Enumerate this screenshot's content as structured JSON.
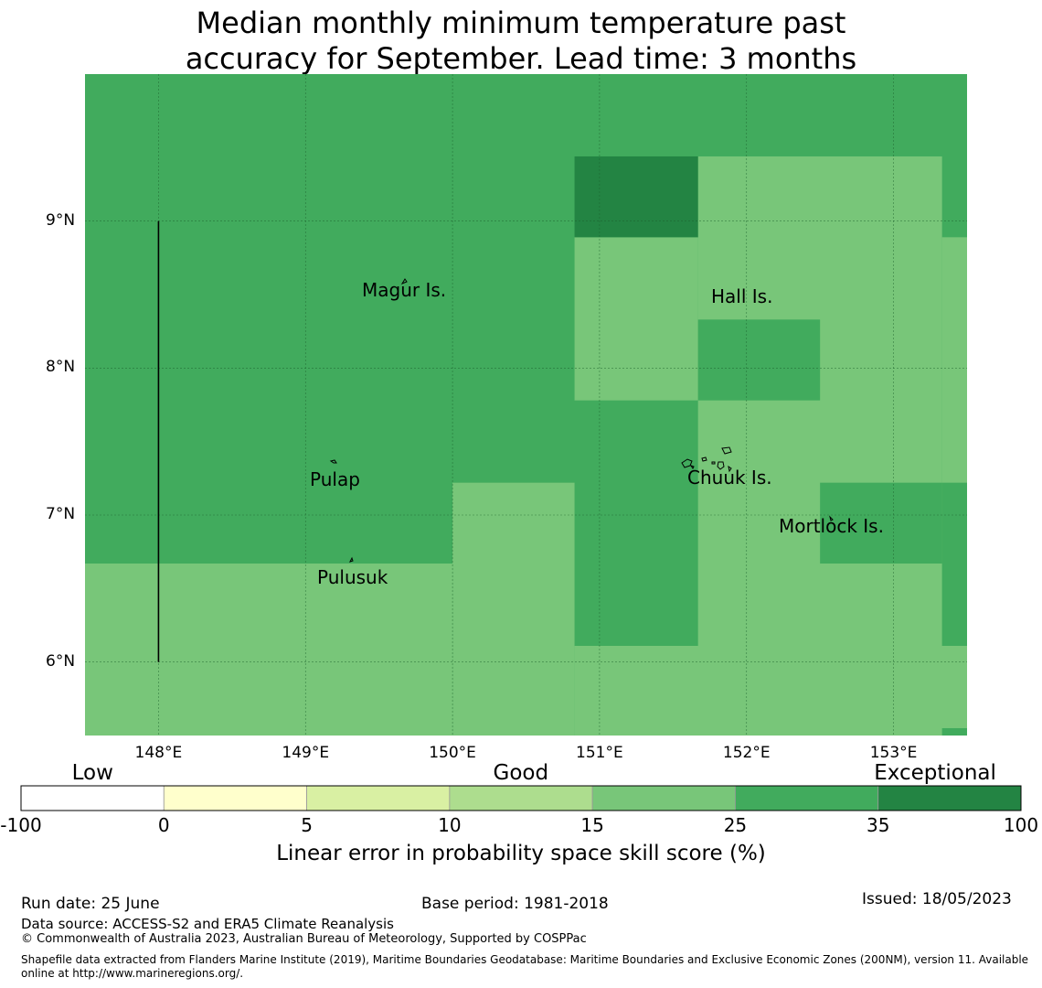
{
  "title": {
    "line1": "Median monthly minimum temperature past",
    "line2": "accuracy for September. Lead time: 3 months"
  },
  "map": {
    "lon_range": [
      147.5,
      153.5
    ],
    "lat_range": [
      5.5,
      10.0
    ],
    "lat_ticks": [
      {
        "value": 9,
        "label": "9°N"
      },
      {
        "value": 8,
        "label": "8°N"
      },
      {
        "value": 7,
        "label": "7°N"
      },
      {
        "value": 6,
        "label": "6°N"
      }
    ],
    "lon_ticks": [
      {
        "value": 148,
        "label": "148°E"
      },
      {
        "value": 149,
        "label": "149°E"
      },
      {
        "value": 150,
        "label": "150°E"
      },
      {
        "value": 151,
        "label": "151°E"
      },
      {
        "value": 152,
        "label": "152°E"
      },
      {
        "value": 153,
        "label": "153°E"
      }
    ],
    "grid": true,
    "skill_regions": [
      {
        "lon": [
          147.5,
          153.5
        ],
        "lat": [
          5.5,
          10.0
        ],
        "class": "25-35",
        "color": "#41ab5d"
      },
      {
        "lon": [
          147.5,
          150.0
        ],
        "lat": [
          5.5,
          6.67
        ],
        "class": "15-25",
        "color": "#78c679"
      },
      {
        "lon": [
          150.0,
          150.83
        ],
        "lat": [
          5.5,
          7.22
        ],
        "class": "15-25",
        "color": "#78c679"
      },
      {
        "lon": [
          150.83,
          153.5
        ],
        "lat": [
          5.5,
          6.11
        ],
        "class": "15-25",
        "color": "#78c679"
      },
      {
        "lon": [
          150.83,
          151.67
        ],
        "lat": [
          7.78,
          8.89
        ],
        "class": "15-25",
        "color": "#78c679"
      },
      {
        "lon": [
          151.67,
          153.33
        ],
        "lat": [
          6.11,
          9.44
        ],
        "class": "15-25",
        "color": "#78c679"
      },
      {
        "lon": [
          153.33,
          153.5
        ],
        "lat": [
          6.11,
          8.89
        ],
        "class": "15-25",
        "color": "#78c679"
      },
      {
        "lon": [
          151.67,
          152.5
        ],
        "lat": [
          7.78,
          8.33
        ],
        "class": "25-35",
        "color": "#41ab5d"
      },
      {
        "lon": [
          152.5,
          153.33
        ],
        "lat": [
          6.67,
          7.22
        ],
        "class": "25-35",
        "color": "#41ab5d"
      },
      {
        "lon": [
          153.33,
          153.5
        ],
        "lat": [
          6.11,
          7.22
        ],
        "class": "25-35",
        "color": "#41ab5d"
      },
      {
        "lon": [
          153.33,
          153.5
        ],
        "lat": [
          5.5,
          5.55
        ],
        "class": "25-35",
        "color": "#41ab5d"
      },
      {
        "lon": [
          150.83,
          151.67
        ],
        "lat": [
          8.89,
          9.44
        ],
        "class": "35-100",
        "color": "#238443"
      }
    ],
    "boundary_line": {
      "lon": 148.0,
      "lat": [
        6.0,
        9.0
      ]
    },
    "places": [
      {
        "name": "Magur Is.",
        "lon": 149.65,
        "lat": 8.6
      },
      {
        "name": "Hall Is.",
        "lon": 151.85,
        "lat": 8.55
      },
      {
        "name": "Pulap",
        "lon": 149.2,
        "lat": 7.35
      },
      {
        "name": "Chuuk Is.",
        "lon": 151.85,
        "lat": 7.4
      },
      {
        "name": "Mortlock Is.",
        "lon": 152.6,
        "lat": 7.0
      },
      {
        "name": "Pulusuk",
        "lon": 149.3,
        "lat": 6.7
      }
    ]
  },
  "colorbar": {
    "categories": [
      {
        "label": "Low",
        "at": 0.5
      },
      {
        "label": "Good",
        "at": 3.5
      },
      {
        "label": "Exceptional",
        "at": 6.4
      }
    ],
    "ticks": [
      "-100",
      "0",
      "5",
      "10",
      "15",
      "25",
      "35",
      "100"
    ],
    "colors": [
      "#ffffff",
      "#ffffcc",
      "#d9f0a3",
      "#addd8e",
      "#78c679",
      "#41ab5d",
      "#238443"
    ],
    "label": "Linear error in probability space skill score (%)"
  },
  "footer": {
    "run_date": "Run date: 25 June",
    "base_period": "Base period: 1981-2018",
    "issued": "Issued: 18/05/2023",
    "data_source": "Data source: ACCESS-S2 and ERA5 Climate Reanalysis",
    "copyright": "© Commonwealth of Australia 2023, Australian Bureau of Meteorology, Supported by COSPPac",
    "shapefile": "Shapefile data extracted from Flanders Marine Institute (2019), Maritime Boundaries Geodatabase: Maritime Boundaries and Exclusive Economic Zones (200NM), version 11. Available online at http://www.marineregions.org/."
  }
}
